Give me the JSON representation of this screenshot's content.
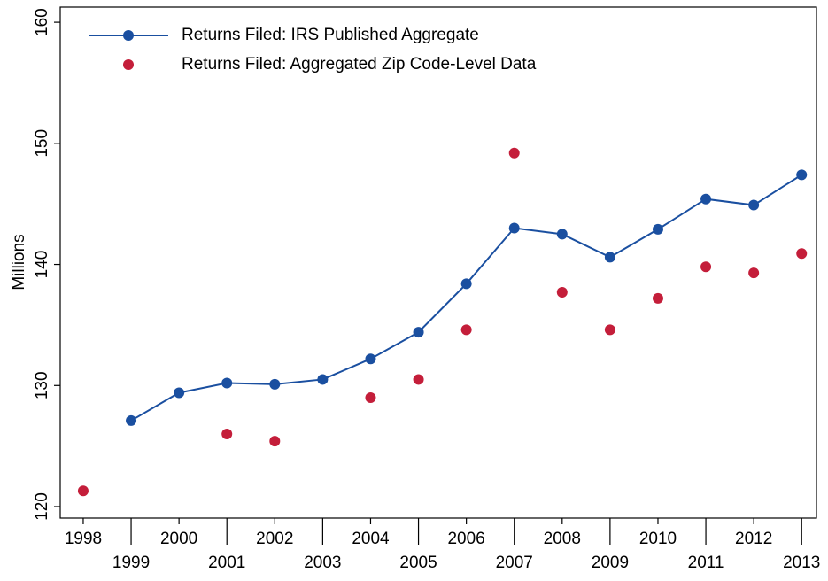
{
  "chart_data": {
    "type": "line",
    "y_label": "Millions",
    "x": [
      1998,
      1999,
      2000,
      2001,
      2002,
      2003,
      2004,
      2005,
      2006,
      2007,
      2008,
      2009,
      2010,
      2011,
      2012,
      2013
    ],
    "series": [
      {
        "name": "Returns Filed: IRS Published Aggregate",
        "color": "#1a4fa0",
        "line": true,
        "values": [
          null,
          127.1,
          129.4,
          130.2,
          130.1,
          130.5,
          132.2,
          134.4,
          138.4,
          143.0,
          142.5,
          140.6,
          142.9,
          145.4,
          144.9,
          147.4
        ]
      },
      {
        "name": "Returns Filed: Aggregated Zip Code-Level Data",
        "color": "#c41e3a",
        "line": false,
        "values": [
          121.3,
          null,
          null,
          126.0,
          125.4,
          null,
          129.0,
          130.5,
          134.6,
          149.2,
          137.7,
          134.6,
          137.2,
          139.8,
          139.3,
          140.9
        ]
      }
    ],
    "xlim": [
      1997.52,
      2013.31
    ],
    "xticks": [
      1998,
      1999,
      2000,
      2001,
      2002,
      2003,
      2004,
      2005,
      2006,
      2007,
      2008,
      2009,
      2010,
      2011,
      2012,
      2013
    ],
    "ylim": [
      119.05,
      161.25
    ],
    "yticks": [
      120,
      130,
      140,
      150,
      160
    ],
    "grid": false,
    "legend": "top-left"
  }
}
